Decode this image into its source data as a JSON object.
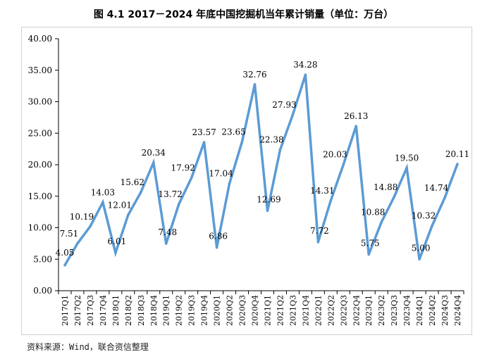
{
  "title": "图 4.1    2017－2024 年底中国挖掘机当年累计销量（单位：万台）",
  "source": "资料来源：Wind，联合资信整理",
  "chart_data": {
    "type": "line",
    "title": "图 4.1    2017－2024 年底中国挖掘机当年累计销量（单位：万台）",
    "xlabel": "",
    "ylabel": "",
    "ylim": [
      0,
      40
    ],
    "yticks": [
      "0.00",
      "5.00",
      "10.00",
      "15.00",
      "20.00",
      "25.00",
      "30.00",
      "35.00",
      "40.00"
    ],
    "grid": false,
    "legend": "none",
    "color": "#5b9bd5",
    "categories": [
      "2017Q1",
      "2017Q2",
      "2017Q3",
      "2017Q4",
      "2018Q1",
      "2018Q2",
      "2018Q3",
      "2018Q4",
      "2019Q1",
      "2019Q2",
      "2019Q3",
      "2019Q4",
      "2020Q1",
      "2020Q2",
      "2020Q3",
      "2020Q4",
      "2021Q1",
      "2021Q2",
      "2021Q3",
      "2021Q4",
      "2022Q1",
      "2022Q2",
      "2022Q3",
      "2022Q4",
      "2023Q1",
      "2023Q2",
      "2023Q3",
      "2023Q4",
      "2024Q1",
      "2024Q2",
      "2024Q3",
      "2024Q4"
    ],
    "values": [
      4.05,
      7.51,
      10.19,
      14.03,
      6.01,
      12.01,
      15.62,
      20.34,
      7.48,
      13.72,
      17.92,
      23.57,
      6.86,
      17.04,
      23.65,
      32.76,
      12.69,
      22.38,
      27.93,
      34.28,
      7.72,
      14.31,
      20.03,
      26.13,
      5.75,
      10.88,
      14.88,
      19.5,
      5.0,
      10.32,
      14.74,
      20.11
    ],
    "labels": [
      "4.05",
      "7.51",
      "10.19",
      "14.03",
      "6.01",
      "12.01",
      "15.62",
      "20.34",
      "7.48",
      "13.72",
      "17.92",
      "23.57",
      "6.86",
      "17.04",
      "23.65",
      "32.76",
      "12.69",
      "22.38",
      "27.93",
      "34.28",
      "7.72",
      "14.31",
      "20.03",
      "26.13",
      "5.75",
      "10.88",
      "14.88",
      "19.50",
      "5.00",
      "10.32",
      "14.74",
      "20.11"
    ]
  }
}
